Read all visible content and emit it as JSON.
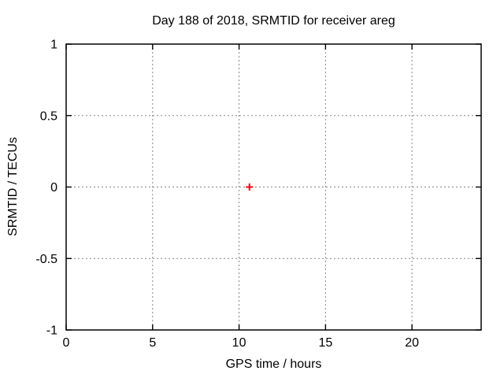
{
  "chart_data": {
    "type": "scatter",
    "title": "Day 188 of 2018, SRMTID for receiver areg",
    "xlabel": "GPS time / hours",
    "ylabel": "SRMTID / TECUs",
    "xlim": [
      0,
      24
    ],
    "ylim": [
      -1,
      1
    ],
    "xticks": [
      0,
      5,
      10,
      15,
      20
    ],
    "ytick_labels": [
      "-1",
      "-0.5",
      "0",
      "0.5",
      "1"
    ],
    "xtick_labels": [
      "0",
      "5",
      "10",
      "15",
      "20"
    ],
    "yticks": [
      -1,
      -0.5,
      0,
      0.5,
      1
    ],
    "grid": true,
    "grid_style": "dotted",
    "legend": "none",
    "series": [
      {
        "name": "SRMTID",
        "marker": "plus",
        "color": "#ff0000",
        "points": [
          {
            "x": 10.6,
            "y": 0.0
          }
        ]
      }
    ],
    "colors": {
      "background": "#ffffff",
      "border": "#000000",
      "grid": "#858585",
      "text": "#000000",
      "point": "#ff0000"
    }
  }
}
